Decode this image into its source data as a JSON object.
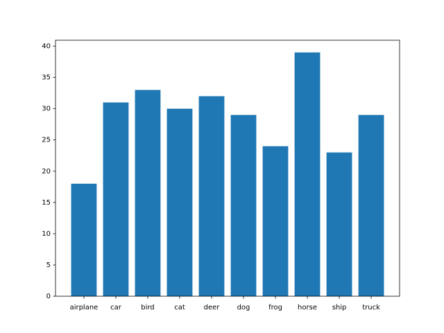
{
  "chart_data": {
    "type": "bar",
    "categories": [
      "airplane",
      "car",
      "bird",
      "cat",
      "deer",
      "dog",
      "frog",
      "horse",
      "ship",
      "truck"
    ],
    "values": [
      18,
      31,
      33,
      30,
      32,
      29,
      24,
      39,
      23,
      29
    ],
    "color": "#1f77b4",
    "ylim": [
      0,
      40.95
    ],
    "yticks": [
      0,
      5,
      10,
      15,
      20,
      25,
      30,
      35,
      40
    ],
    "grid": false
  }
}
